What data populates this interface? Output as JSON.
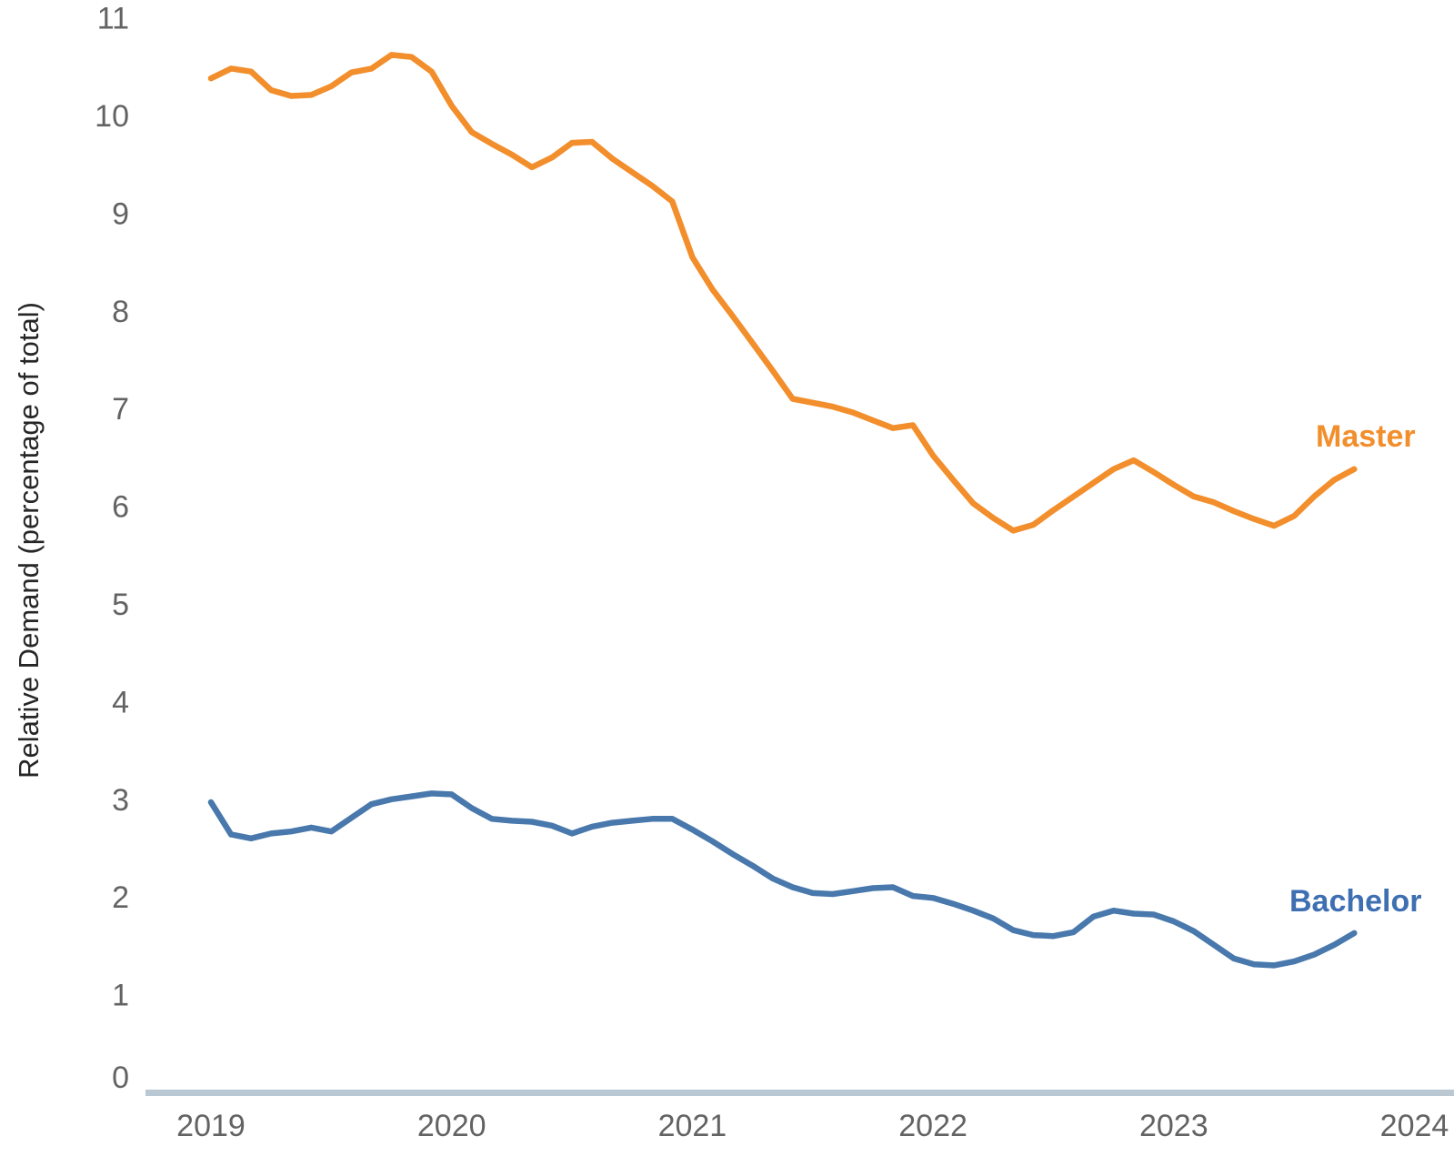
{
  "chart_data": {
    "type": "line",
    "title": "",
    "xlabel": "",
    "ylabel": "Relative Demand (percentage of total)",
    "ylim": [
      0,
      11
    ],
    "xlim_years": [
      2019,
      2024
    ],
    "grid": "off",
    "legend": "end-of-line-labels",
    "y_ticks": [
      "0",
      "1",
      "2",
      "3",
      "4",
      "5",
      "6",
      "7",
      "8",
      "9",
      "10",
      "11"
    ],
    "x_ticks": [
      "2019",
      "2020",
      "2021",
      "2022",
      "2023",
      "2024"
    ],
    "x_months": [
      "2019-01",
      "2019-02",
      "2019-03",
      "2019-04",
      "2019-05",
      "2019-06",
      "2019-07",
      "2019-08",
      "2019-09",
      "2019-10",
      "2019-11",
      "2019-12",
      "2020-01",
      "2020-02",
      "2020-03",
      "2020-04",
      "2020-05",
      "2020-06",
      "2020-07",
      "2020-08",
      "2020-09",
      "2020-10",
      "2020-11",
      "2020-12",
      "2021-01",
      "2021-02",
      "2021-03",
      "2021-04",
      "2021-05",
      "2021-06",
      "2021-07",
      "2021-08",
      "2021-09",
      "2021-10",
      "2021-11",
      "2021-12",
      "2022-01",
      "2022-02",
      "2022-03",
      "2022-04",
      "2022-05",
      "2022-06",
      "2022-07",
      "2022-08",
      "2022-09",
      "2022-10",
      "2022-11",
      "2022-12",
      "2023-01",
      "2023-02",
      "2023-03",
      "2023-04",
      "2023-05",
      "2023-06",
      "2023-07",
      "2023-08",
      "2023-09",
      "2023-10"
    ],
    "series": [
      {
        "name": "Master",
        "color": "#f28e2b",
        "label_color": "#f28e2b",
        "values": [
          10.38,
          10.48,
          10.45,
          10.26,
          10.2,
          10.21,
          10.3,
          10.44,
          10.48,
          10.62,
          10.6,
          10.45,
          10.1,
          9.83,
          9.71,
          9.6,
          9.47,
          9.57,
          9.72,
          9.73,
          9.56,
          9.42,
          9.28,
          9.12,
          8.55,
          8.22,
          7.95,
          7.67,
          7.39,
          7.1,
          7.06,
          7.02,
          6.96,
          6.88,
          6.8,
          6.83,
          6.52,
          6.27,
          6.03,
          5.88,
          5.75,
          5.81,
          5.96,
          6.1,
          6.24,
          6.38,
          6.47,
          6.35,
          6.22,
          6.1,
          6.04,
          5.95,
          5.87,
          5.8,
          5.9,
          6.1,
          6.27,
          6.38
        ]
      },
      {
        "name": "Bachelor",
        "color": "#4878ac",
        "label_color": "#3e6fb2",
        "values": [
          2.97,
          2.64,
          2.6,
          2.65,
          2.67,
          2.71,
          2.67,
          2.81,
          2.95,
          3.0,
          3.03,
          3.06,
          3.05,
          2.91,
          2.8,
          2.78,
          2.77,
          2.73,
          2.65,
          2.72,
          2.76,
          2.78,
          2.8,
          2.8,
          2.69,
          2.57,
          2.44,
          2.32,
          2.19,
          2.1,
          2.04,
          2.03,
          2.06,
          2.09,
          2.1,
          2.01,
          1.99,
          1.93,
          1.86,
          1.78,
          1.66,
          1.61,
          1.6,
          1.64,
          1.8,
          1.86,
          1.83,
          1.82,
          1.75,
          1.65,
          1.51,
          1.37,
          1.31,
          1.3,
          1.34,
          1.41,
          1.51,
          1.63
        ]
      }
    ]
  },
  "colors": {
    "background": "#ffffff",
    "axis_line": "#b9c8d2",
    "tick_label": "#636363",
    "axis_title": "#262626"
  }
}
